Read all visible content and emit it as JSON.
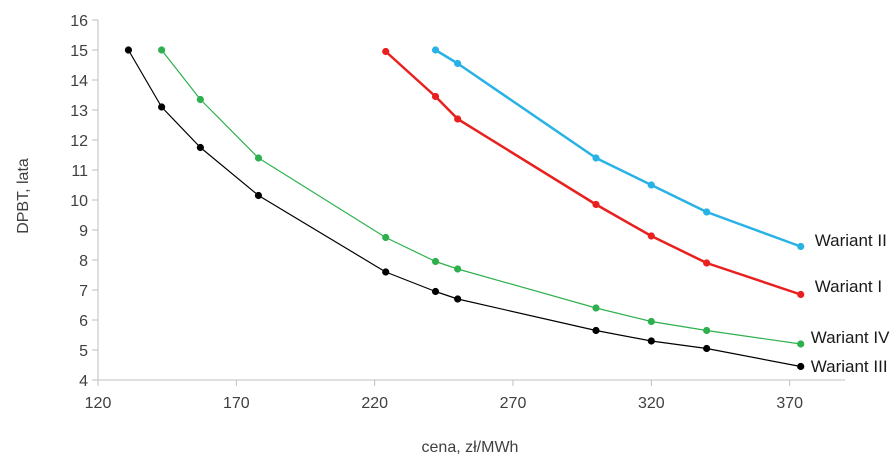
{
  "chart_data": {
    "type": "line",
    "title": "",
    "xlabel": "cena, zł/MWh",
    "ylabel": "DPBT, lata",
    "xlim": [
      120,
      390
    ],
    "ylim": [
      4,
      16
    ],
    "xticks": [
      120,
      170,
      220,
      270,
      320,
      370
    ],
    "yticks": [
      4,
      5,
      6,
      7,
      8,
      9,
      10,
      11,
      12,
      13,
      14,
      15,
      16
    ],
    "grid": false,
    "legend": "direct labels at line ends",
    "series": [
      {
        "name": "Wariant II",
        "color": "#29B2E6",
        "x": [
          242,
          250,
          300,
          320,
          340,
          374
        ],
        "y": [
          15.0,
          14.55,
          11.4,
          10.5,
          9.6,
          8.45
        ]
      },
      {
        "name": "Wariant I",
        "color": "#E8211F",
        "x": [
          224,
          242,
          250,
          300,
          320,
          340,
          374
        ],
        "y": [
          14.95,
          13.45,
          12.7,
          9.85,
          8.8,
          7.9,
          6.85
        ]
      },
      {
        "name": "Wariant IV",
        "color": "#2EB04E",
        "x": [
          143,
          157,
          178,
          224,
          242,
          250,
          300,
          320,
          340,
          374
        ],
        "y": [
          15.0,
          13.35,
          11.4,
          8.75,
          7.95,
          7.7,
          6.4,
          5.95,
          5.65,
          5.2
        ]
      },
      {
        "name": "Wariant III",
        "color": "#000000",
        "x": [
          131,
          143,
          157,
          178,
          224,
          242,
          250,
          300,
          320,
          340,
          374
        ],
        "y": [
          15.0,
          13.1,
          11.75,
          10.15,
          7.6,
          6.95,
          6.7,
          5.65,
          5.3,
          5.05,
          4.45
        ]
      }
    ]
  }
}
